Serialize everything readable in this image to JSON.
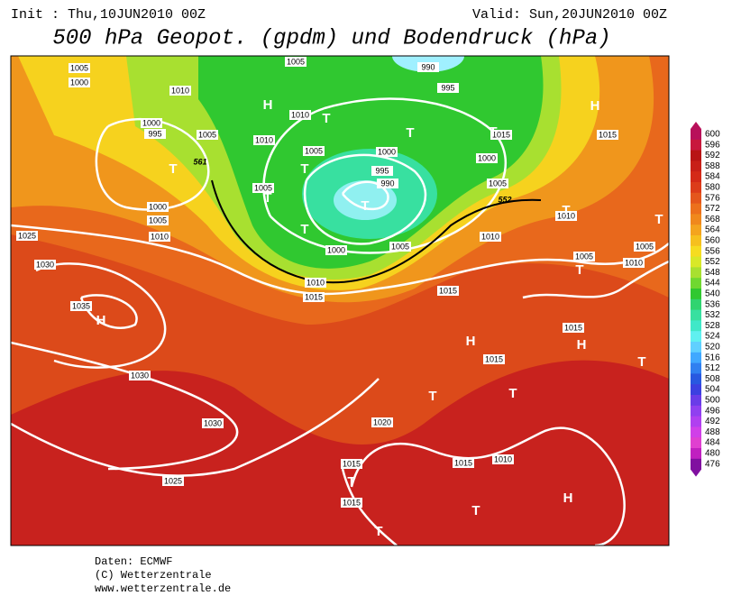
{
  "header": {
    "init": "Init : Thu,10JUN2010 00Z",
    "valid": "Valid: Sun,20JUN2010 00Z",
    "title": "500 hPa Geopot. (gpdm) und Bodendruck (hPa)"
  },
  "map": {
    "isobar_labels": [
      "1005",
      "1000",
      "1010",
      "1000",
      "995",
      "1005",
      "1010",
      "1010",
      "1005",
      "1005",
      "1000",
      "1005",
      "1010",
      "1025",
      "1030",
      "1035",
      "1030",
      "1030",
      "1025",
      "1000",
      "995",
      "990",
      "1000",
      "1005",
      "1010",
      "1015",
      "1010",
      "1015",
      "1005",
      "990",
      "995",
      "1000",
      "1005",
      "1015",
      "1010",
      "1005",
      "1010",
      "1005",
      "1015",
      "1015",
      "1020",
      "1015",
      "1015",
      "1010",
      "1015",
      "1015"
    ],
    "pressure_centers": [
      "H",
      "H",
      "H",
      "H",
      "H",
      "H",
      "T",
      "T",
      "T",
      "T",
      "T",
      "T",
      "T",
      "T",
      "T",
      "T",
      "T",
      "T",
      "T",
      "T",
      "T",
      "T",
      "T"
    ],
    "height_labels": [
      "561",
      "552"
    ]
  },
  "legend": {
    "ticks": [
      600,
      596,
      592,
      588,
      584,
      580,
      576,
      572,
      568,
      564,
      560,
      556,
      552,
      548,
      544,
      540,
      536,
      532,
      528,
      524,
      520,
      516,
      512,
      508,
      504,
      500,
      496,
      492,
      488,
      484,
      480,
      476
    ]
  },
  "footer": {
    "source": "Daten: ECMWF",
    "copyright": "(C) Wetterzentrale",
    "url": "www.wetterzentrale.de"
  }
}
